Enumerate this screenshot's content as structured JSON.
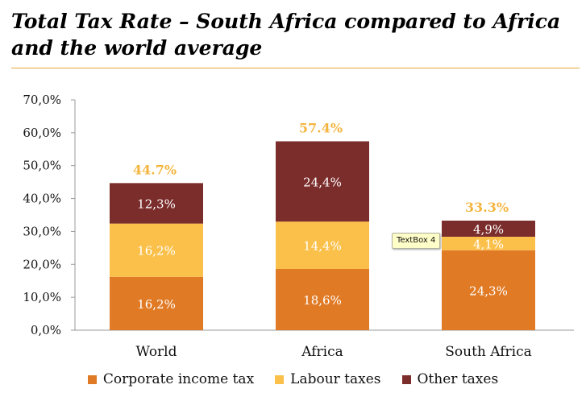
{
  "title": "Total Tax Rate – South Africa compared to Africa and the world average",
  "tooltip": {
    "label": "TextBox 4"
  },
  "colors": {
    "corporate": "#e07a25",
    "labour": "#fbc04a",
    "other": "#7b2d2b",
    "total_label": "#f4b53f",
    "axis": "#999999"
  },
  "chart_data": {
    "type": "bar",
    "stacked": true,
    "categories": [
      "World",
      "Africa",
      "South Africa"
    ],
    "series": [
      {
        "name": "Corporate income tax",
        "key": "corporate",
        "values": [
          16.2,
          18.6,
          24.3
        ],
        "labels": [
          "16,2%",
          "18,6%",
          "24,3%"
        ]
      },
      {
        "name": "Labour taxes",
        "key": "labour",
        "values": [
          16.2,
          14.4,
          4.1
        ],
        "labels": [
          "16,2%",
          "14,4%",
          "4,1%"
        ]
      },
      {
        "name": "Other taxes",
        "key": "other",
        "values": [
          12.3,
          24.4,
          4.9
        ],
        "labels": [
          "12,3%",
          "24,4%",
          "4,9%"
        ]
      }
    ],
    "totals": [
      44.7,
      57.4,
      33.3
    ],
    "total_labels": [
      "44.7%",
      "57.4%",
      "33.3%"
    ],
    "ylim": [
      0,
      70
    ],
    "yticks": [
      0,
      10,
      20,
      30,
      40,
      50,
      60,
      70
    ],
    "ytick_labels": [
      "0,0%",
      "10,0%",
      "20,0%",
      "30,0%",
      "40,0%",
      "50,0%",
      "60,0%",
      "70,0%"
    ],
    "grid": false,
    "legend_position": "bottom"
  }
}
